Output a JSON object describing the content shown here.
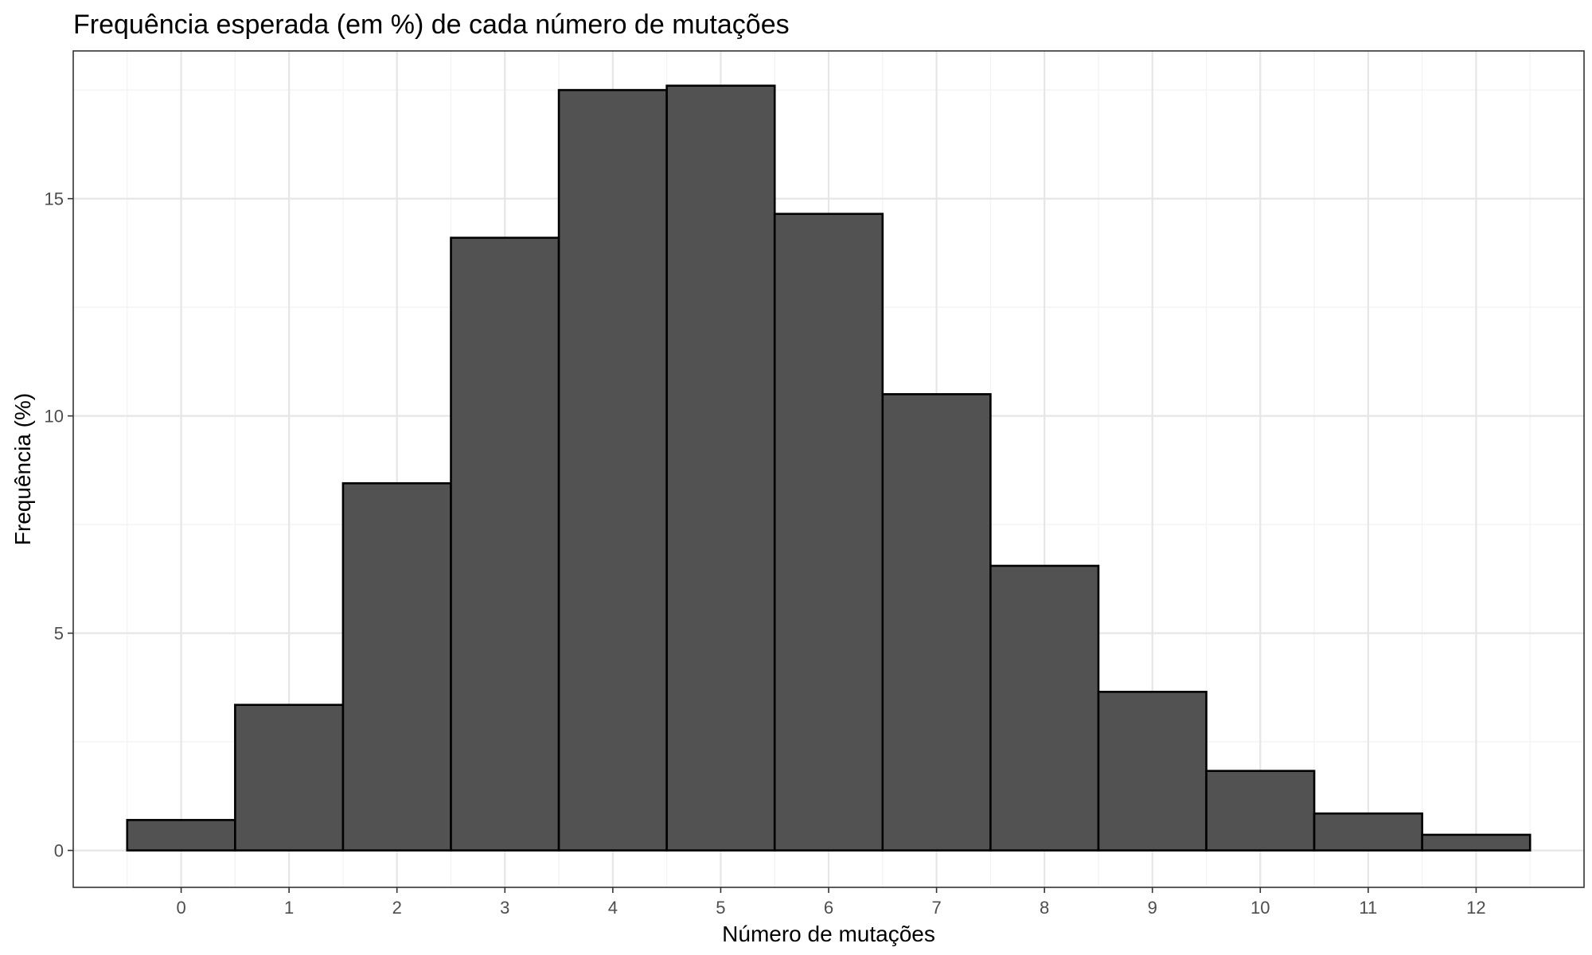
{
  "chart_data": {
    "type": "bar",
    "title": "Frequência esperada (em %) de cada número de mutações",
    "xlabel": "Número de mutações",
    "ylabel": "Frequência (%)",
    "categories": [
      "0",
      "1",
      "2",
      "3",
      "4",
      "5",
      "6",
      "7",
      "8",
      "9",
      "10",
      "11",
      "12"
    ],
    "x": [
      0,
      1,
      2,
      3,
      4,
      5,
      6,
      7,
      8,
      9,
      10,
      11,
      12
    ],
    "values": [
      0.7,
      3.35,
      8.45,
      14.1,
      17.5,
      17.6,
      14.65,
      10.5,
      6.55,
      3.65,
      1.83,
      0.85,
      0.36
    ],
    "xlim": [
      -1,
      13
    ],
    "ylim": [
      -0.85,
      18.4
    ],
    "yticks": [
      0,
      5,
      10,
      15
    ],
    "yticks_minor": [
      2.5,
      7.5,
      12.5,
      17.5
    ],
    "xticks": [
      0,
      1,
      2,
      3,
      4,
      5,
      6,
      7,
      8,
      9,
      10,
      11,
      12
    ],
    "xticks_minor": [
      -0.5,
      0.5,
      1.5,
      2.5,
      3.5,
      4.5,
      5.5,
      6.5,
      7.5,
      8.5,
      9.5,
      10.5,
      11.5,
      12.5
    ],
    "grid": true,
    "legend": "none",
    "colors": {
      "bar_fill": "#525252",
      "bar_stroke": "#000000",
      "grid_major": "#e6e6e6",
      "grid_minor": "#f2f2f2",
      "panel_border": "#333333",
      "tick_label": "#4d4d4d"
    }
  }
}
